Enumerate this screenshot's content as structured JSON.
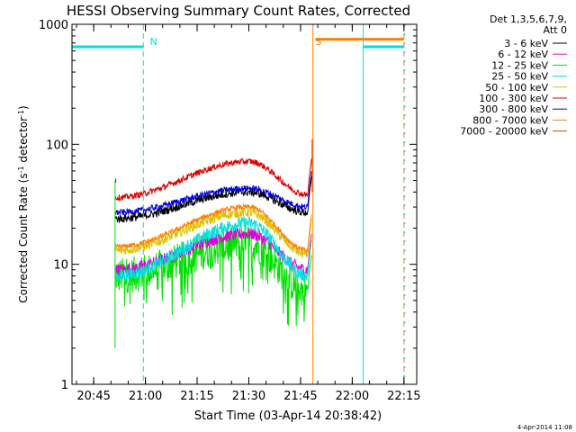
{
  "chart_data": {
    "type": "line",
    "title": "HESSI Observing Summary Count Rates, Corrected",
    "xlabel": "Start Time (03-Apr-14 20:38:42)",
    "ylabel_main": "Corrected Count Rate (s",
    "ylabel_sup1": "-1",
    "ylabel_mid": " detector",
    "ylabel_sup2": "-1",
    "ylabel_end": ")",
    "y_scale": "log",
    "ylim": [
      1,
      1000
    ],
    "xlim_minutes_after_start": [
      0,
      100
    ],
    "x_tick_labels": [
      "20:45",
      "21:00",
      "21:15",
      "21:30",
      "21:45",
      "22:00",
      "22:15"
    ],
    "x_tick_minutes": [
      6.3,
      21.3,
      36.3,
      51.3,
      66.3,
      81.3,
      96.3
    ],
    "y_tick_labels": [
      "1",
      "10",
      "100",
      "1000"
    ],
    "y_tick_values": [
      1,
      10,
      100,
      1000
    ],
    "legend_header": [
      "Det 1,3,5,6,7,9,",
      "Att 0"
    ],
    "legend": [
      {
        "label": "3 - 6 keV",
        "color": "#000000"
      },
      {
        "label": "6 - 12 keV",
        "color": "#e000e0"
      },
      {
        "label": "12 - 25 keV",
        "color": "#00e000"
      },
      {
        "label": "25 - 50 keV",
        "color": "#00e0e0"
      },
      {
        "label": "50 - 100 keV",
        "color": "#e0c000"
      },
      {
        "label": "100 - 300 keV",
        "color": "#e00000"
      },
      {
        "label": "300 - 800 keV",
        "color": "#0000e0"
      },
      {
        "label": "800 - 7000 keV",
        "color": "#ff8000"
      },
      {
        "label": "7000 - 20000 keV",
        "color": "#a06000"
      }
    ],
    "annotations": [
      {
        "text": "N",
        "minute": 21.8,
        "color": "#00e0e0"
      },
      {
        "text": "S",
        "minute": 69.8,
        "color": "#ff8000"
      }
    ],
    "night_color": "#00e0e0",
    "saa_color": "#ff8000",
    "night_bar_level": 650,
    "saa_bar_level": 750,
    "night_intervals": [
      [
        0,
        20.7
      ],
      [
        84.5,
        96.3
      ]
    ],
    "saa_interval": [
      70.6,
      96.3
    ],
    "data_start_minute": 12.5,
    "data_end_minute": 69.6,
    "series": [
      {
        "name": "12 - 25 keV",
        "color": "#00e000",
        "start": 8,
        "peak": 15,
        "end": 6,
        "noise": 0.35
      },
      {
        "name": "6 - 12 keV",
        "color": "#e000e0",
        "start": 9,
        "peak": 18,
        "end": 9,
        "noise": 0.12
      },
      {
        "name": "25 - 50 keV",
        "color": "#00e0e0",
        "start": 8,
        "peak": 22,
        "end": 8,
        "noise": 0.13
      },
      {
        "name": "50 - 100 keV",
        "color": "#e0c000",
        "start": 13,
        "peak": 27,
        "end": 12,
        "noise": 0.09
      },
      {
        "name": "800 - 7000 keV",
        "color": "#ff8000",
        "start": 14,
        "peak": 30,
        "end": 13,
        "noise": 0.05
      },
      {
        "name": "3 - 6 keV",
        "color": "#000000",
        "start": 24,
        "peak": 40,
        "end": 27,
        "noise": 0.08
      },
      {
        "name": "300 - 800 keV",
        "color": "#0000e0",
        "start": 27,
        "peak": 43,
        "end": 30,
        "noise": 0.06
      },
      {
        "name": "100 - 300 keV",
        "color": "#e00000",
        "start": 36,
        "peak": 72,
        "end": 38,
        "noise": 0.06
      }
    ],
    "footer_text": "4-Apr-2014 11:08"
  }
}
